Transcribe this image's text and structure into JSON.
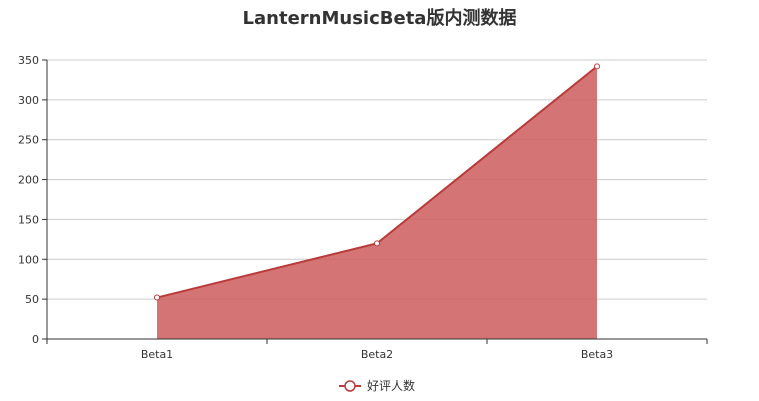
{
  "chart_data": {
    "type": "area",
    "title": "LanternMusicBeta版内测数据",
    "categories": [
      "Beta1",
      "Beta2",
      "Beta3"
    ],
    "series": [
      {
        "name": "好评人数",
        "values": [
          52,
          120,
          342
        ]
      }
    ],
    "ylim": [
      0,
      350
    ],
    "yticks": [
      0,
      50,
      100,
      150,
      200,
      250,
      300,
      350
    ],
    "grid": true,
    "legend_position": "bottom-center",
    "colors": {
      "line": "#b83b3b",
      "area": "#cd5c5c",
      "grid": "#cccccc",
      "axis": "#333333"
    }
  }
}
